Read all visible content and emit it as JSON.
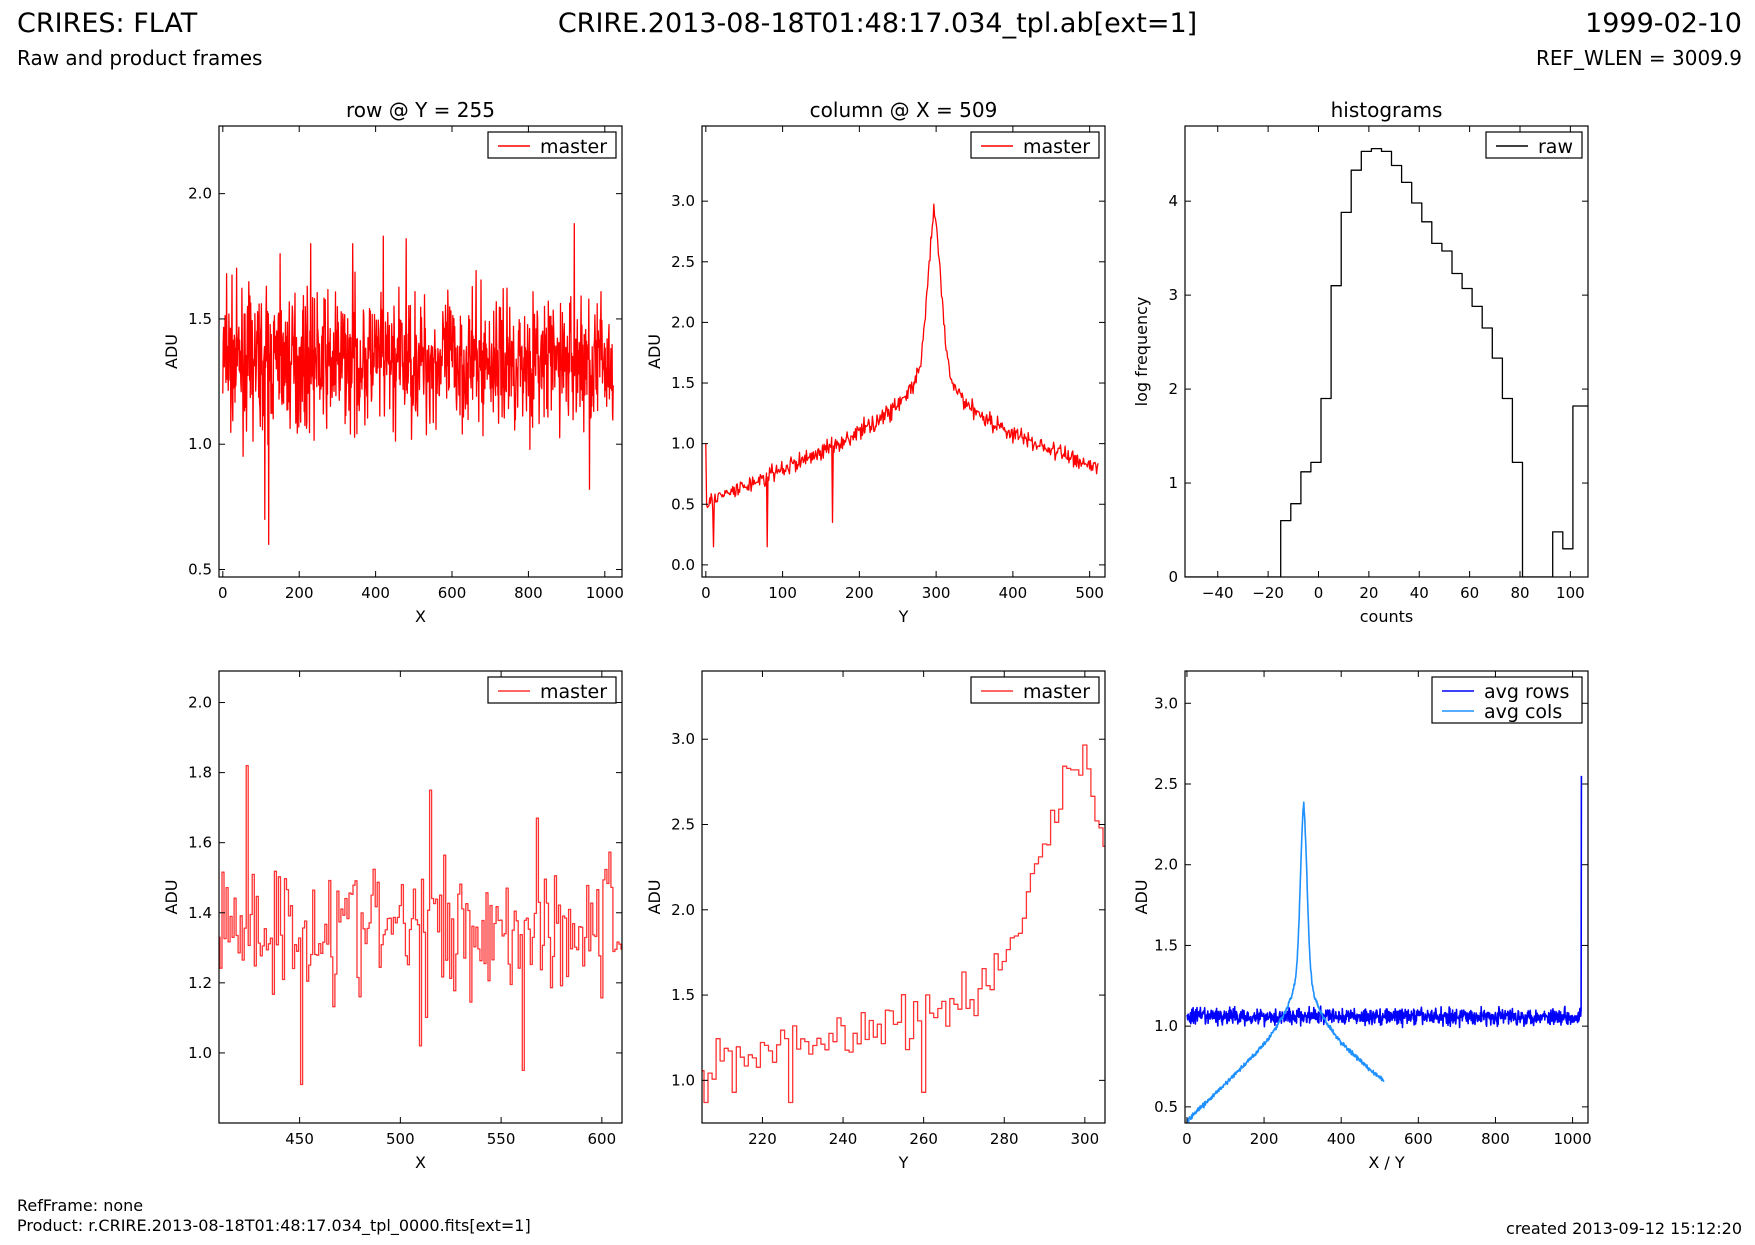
{
  "header": {
    "title": "CRIRES: FLAT",
    "subtitle": "Raw and product frames",
    "file": "CRIRE.2013-08-18T01:48:17.034_tpl.ab[ext=1]",
    "date": "1999-02-10",
    "ref_wlen": "REF_WLEN = 3009.9"
  },
  "footer": {
    "refframe": "RefFrame: none",
    "product": "Product: r.CRIRE.2013-08-18T01:48:17.034_tpl_0000.fits[ext=1]",
    "created": "created 2013-09-12 15:12:20"
  },
  "colors": {
    "master": "#ff0000",
    "master_zoom": "#ff3333",
    "raw": "#000000",
    "avg_rows": "#0000ff",
    "avg_cols": "#1e90ff"
  },
  "chart_data": [
    {
      "type": "line",
      "title": "row @ Y = 255",
      "xlabel": "X",
      "ylabel": "ADU",
      "xlim": [
        -10,
        1045
      ],
      "ylim": [
        0.47,
        2.27
      ],
      "xticks": [
        0,
        200,
        400,
        600,
        800,
        1000
      ],
      "yticks": [
        0.5,
        1.0,
        1.5,
        2.0
      ],
      "legend": "top-right",
      "series": [
        {
          "name": "master",
          "noise": {
            "n": 1024,
            "x0": 0,
            "x1": 1023,
            "mean": 1.33,
            "amp": 0.2
          },
          "spikes": [
            [
              10,
              1.68
            ],
            [
              150,
              1.76
            ],
            [
              230,
              1.8
            ],
            [
              340,
              1.8
            ],
            [
              420,
              1.83
            ],
            [
              480,
              1.82
            ],
            [
              920,
              1.88
            ],
            [
              110,
              0.7
            ],
            [
              120,
              0.6
            ],
            [
              960,
              0.82
            ]
          ]
        }
      ]
    },
    {
      "type": "line",
      "title": "column @ X = 509",
      "xlabel": "Y",
      "ylabel": "ADU",
      "xlim": [
        -5,
        520
      ],
      "ylim": [
        -0.1,
        3.62
      ],
      "xticks": [
        0,
        100,
        200,
        300,
        400,
        500
      ],
      "yticks": [
        0.0,
        0.5,
        1.0,
        1.5,
        2.0,
        2.5,
        3.0
      ],
      "legend": "top-right",
      "series": [
        {
          "name": "master",
          "profile": {
            "n": 512,
            "x0": 0,
            "x1": 511,
            "peak_x": 298,
            "peak_y": 2.82
          },
          "spikes": [
            [
              0,
              1.0
            ],
            [
              10,
              0.15
            ],
            [
              80,
              0.15
            ],
            [
              165,
              0.35
            ],
            [
              300,
              2.82
            ]
          ]
        }
      ]
    },
    {
      "type": "line",
      "title": "histograms",
      "xlabel": "counts",
      "ylabel": "log frequency",
      "xlim": [
        -53,
        107
      ],
      "ylim": [
        0,
        4.8
      ],
      "xticks": [
        -40,
        -20,
        0,
        20,
        40,
        60,
        80,
        100
      ],
      "yticks": [
        0,
        1,
        2,
        3,
        4
      ],
      "legend": "top-right",
      "series": [
        {
          "name": "raw",
          "step_edges": [
            -53,
            -15,
            -11,
            -7,
            -3,
            1,
            5,
            9,
            13,
            17,
            21,
            25,
            29,
            33,
            37,
            41,
            45,
            49,
            53,
            57,
            61,
            65,
            69,
            73,
            77,
            81,
            85,
            89,
            93,
            97,
            101,
            105,
            107
          ],
          "step_values": [
            0,
            0.6,
            0.78,
            1.12,
            1.22,
            1.9,
            3.1,
            3.88,
            4.33,
            4.53,
            4.56,
            4.53,
            4.38,
            4.2,
            3.98,
            3.78,
            3.55,
            3.47,
            3.23,
            3.07,
            2.88,
            2.65,
            2.33,
            1.9,
            1.22,
            0,
            0,
            0,
            0.48,
            0.3,
            1.82,
            1.82
          ]
        }
      ]
    },
    {
      "type": "line",
      "xlabel": "X",
      "ylabel": "ADU",
      "xlim": [
        410,
        610
      ],
      "ylim": [
        0.8,
        2.09
      ],
      "xticks": [
        450,
        500,
        550,
        600
      ],
      "yticks": [
        1.0,
        1.2,
        1.4,
        1.6,
        1.8,
        2.0
      ],
      "legend": "top-right",
      "series": [
        {
          "name": "master",
          "step_noise": {
            "x0": 410,
            "x1": 610,
            "mean": 1.36,
            "amp": 0.18
          },
          "spikes": [
            [
              424,
              1.82
            ],
            [
              451,
              0.91
            ],
            [
              515,
              1.75
            ],
            [
              568,
              1.67
            ],
            [
              561,
              0.95
            ],
            [
              510,
              1.02
            ]
          ]
        }
      ]
    },
    {
      "type": "line",
      "xlabel": "Y",
      "ylabel": "ADU",
      "xlim": [
        205,
        305
      ],
      "ylim": [
        0.75,
        3.4
      ],
      "xticks": [
        220,
        240,
        260,
        280,
        300
      ],
      "yticks": [
        1.0,
        1.5,
        2.0,
        2.5,
        3.0
      ],
      "legend": "top-right",
      "series": [
        {
          "name": "master",
          "step_profile": {
            "x0": 205,
            "x1": 305,
            "peak_x": 298,
            "peak_y": 2.82
          },
          "spikes": [
            [
              297,
              2.82
            ],
            [
              298,
              2.82
            ],
            [
              206,
              0.87
            ],
            [
              213,
              0.93
            ],
            [
              227,
              0.87
            ],
            [
              260,
              0.93
            ]
          ]
        }
      ]
    },
    {
      "type": "line",
      "xlabel": "X / Y",
      "ylabel": "ADU",
      "xlim": [
        -5,
        1040
      ],
      "ylim": [
        0.4,
        3.2
      ],
      "xticks": [
        0,
        200,
        400,
        600,
        800,
        1000
      ],
      "yticks": [
        0.5,
        1.0,
        1.5,
        2.0,
        2.5,
        3.0
      ],
      "legend": "top-right",
      "series": [
        {
          "name": "avg rows",
          "noise": {
            "n": 1024,
            "x0": 0,
            "x1": 1023,
            "mean": 1.06,
            "amp": 0.04
          },
          "spikes": [
            [
              1022,
              1.1
            ],
            [
              1023,
              2.55
            ]
          ]
        },
        {
          "name": "avg cols",
          "profile": {
            "n": 512,
            "x0": 0,
            "x1": 511,
            "peak_x": 303,
            "peak_y": 2.32
          },
          "spikes": []
        }
      ]
    }
  ]
}
